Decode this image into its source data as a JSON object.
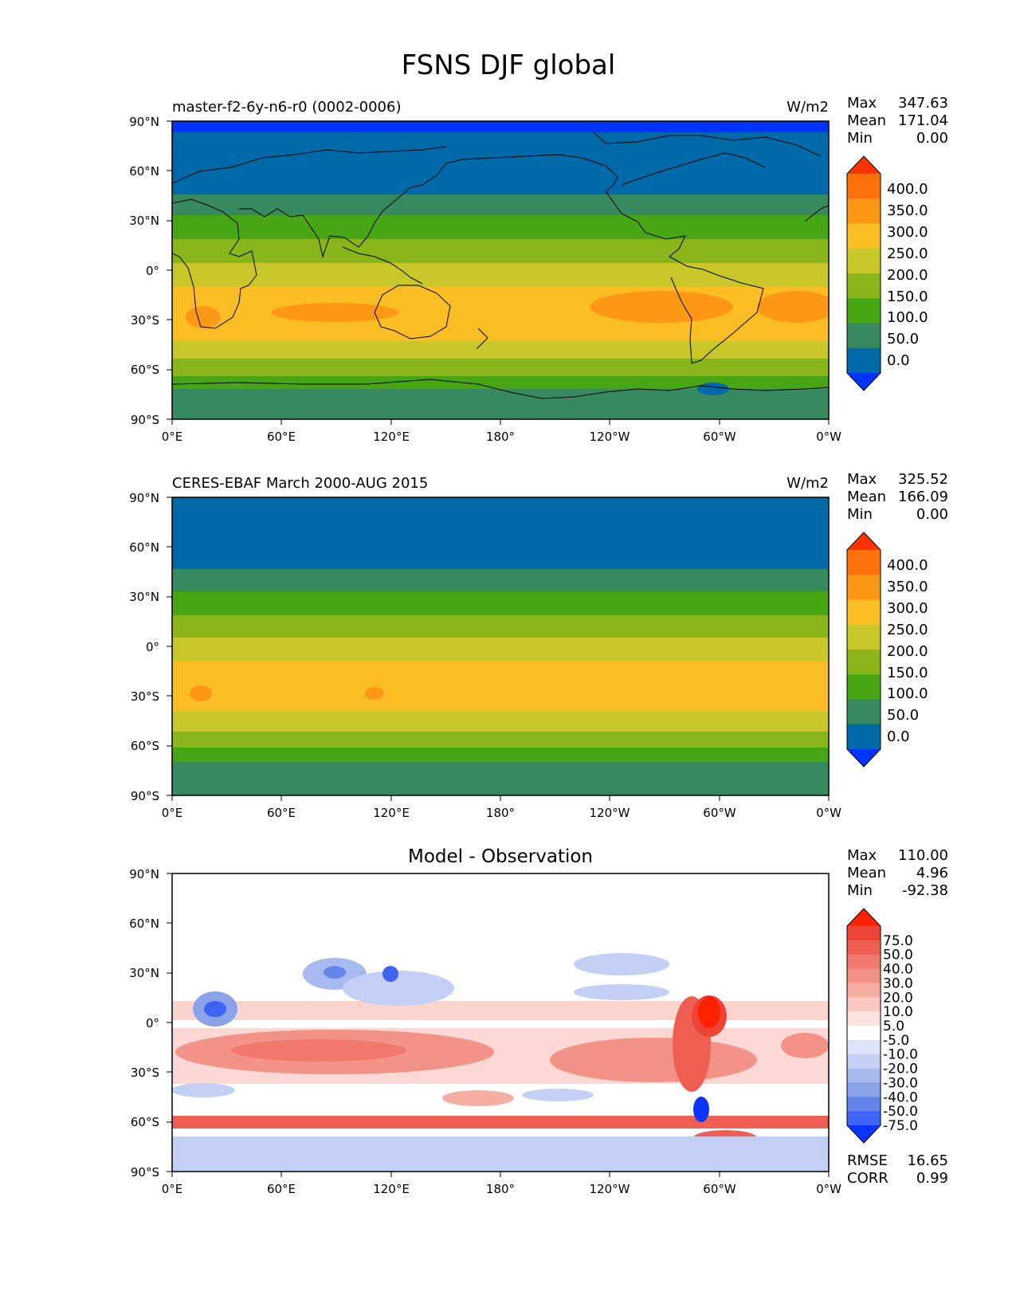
{
  "title": "FSNS DJF global",
  "colors": {
    "abs_levels": [
      "#0033ff",
      "#006aa8",
      "#378960",
      "#48a513",
      "#8ab51a",
      "#c9c62a",
      "#fbbd24",
      "#fd9817",
      "#fe710c",
      "#ff3300"
    ],
    "diff_levels": [
      "#0a34ff",
      "#3f63f5",
      "#6585eb",
      "#8aa2e8",
      "#a7b9ee",
      "#c3cff4",
      "#dde4fa",
      "#ffffff",
      "#fde3e0",
      "#f9c8c1",
      "#f6aea3",
      "#f39387",
      "#f1786c",
      "#ef5e52",
      "#ee4437",
      "#ff2200"
    ],
    "coastline": "#000000"
  },
  "panels": [
    {
      "id": "test",
      "left_label": "master-f2-6y-n6-r0 (0002-0006)",
      "right_label": "W/m2",
      "center_title": "",
      "stats": [
        {
          "label": "Max",
          "value": "347.63"
        },
        {
          "label": "Mean",
          "value": "171.04"
        },
        {
          "label": "Min",
          "value": "0.00"
        }
      ],
      "colorbar_ticks": [
        "400.0",
        "350.0",
        "300.0",
        "250.0",
        "200.0",
        "150.0",
        "100.0",
        "50.0",
        "0.0"
      ],
      "metrics": []
    },
    {
      "id": "reference",
      "left_label": "CERES-EBAF March 2000-AUG 2015",
      "right_label": "W/m2",
      "center_title": "",
      "stats": [
        {
          "label": "Max",
          "value": "325.52"
        },
        {
          "label": "Mean",
          "value": "166.09"
        },
        {
          "label": "Min",
          "value": "0.00"
        }
      ],
      "colorbar_ticks": [
        "400.0",
        "350.0",
        "300.0",
        "250.0",
        "200.0",
        "150.0",
        "100.0",
        "50.0",
        "0.0"
      ],
      "metrics": []
    },
    {
      "id": "diff",
      "left_label": "",
      "right_label": "",
      "center_title": "Model - Observation",
      "stats": [
        {
          "label": "Max",
          "value": "110.00"
        },
        {
          "label": "Mean",
          "value": "4.96"
        },
        {
          "label": "Min",
          "value": "-92.38"
        }
      ],
      "colorbar_ticks": [
        "75.0",
        "50.0",
        "40.0",
        "30.0",
        "20.0",
        "10.0",
        "5.0",
        "-5.0",
        "-10.0",
        "-20.0",
        "-30.0",
        "-40.0",
        "-50.0",
        "-75.0"
      ],
      "metrics": [
        {
          "label": "RMSE",
          "value": "16.65"
        },
        {
          "label": "CORR",
          "value": "0.99"
        }
      ]
    }
  ],
  "x_ticks": [
    "0°E",
    "60°E",
    "120°E",
    "180°",
    "120°W",
    "60°W",
    "0°W"
  ],
  "y_ticks": [
    "90°N",
    "60°N",
    "30°N",
    "0°",
    "30°S",
    "60°S",
    "90°S"
  ]
}
